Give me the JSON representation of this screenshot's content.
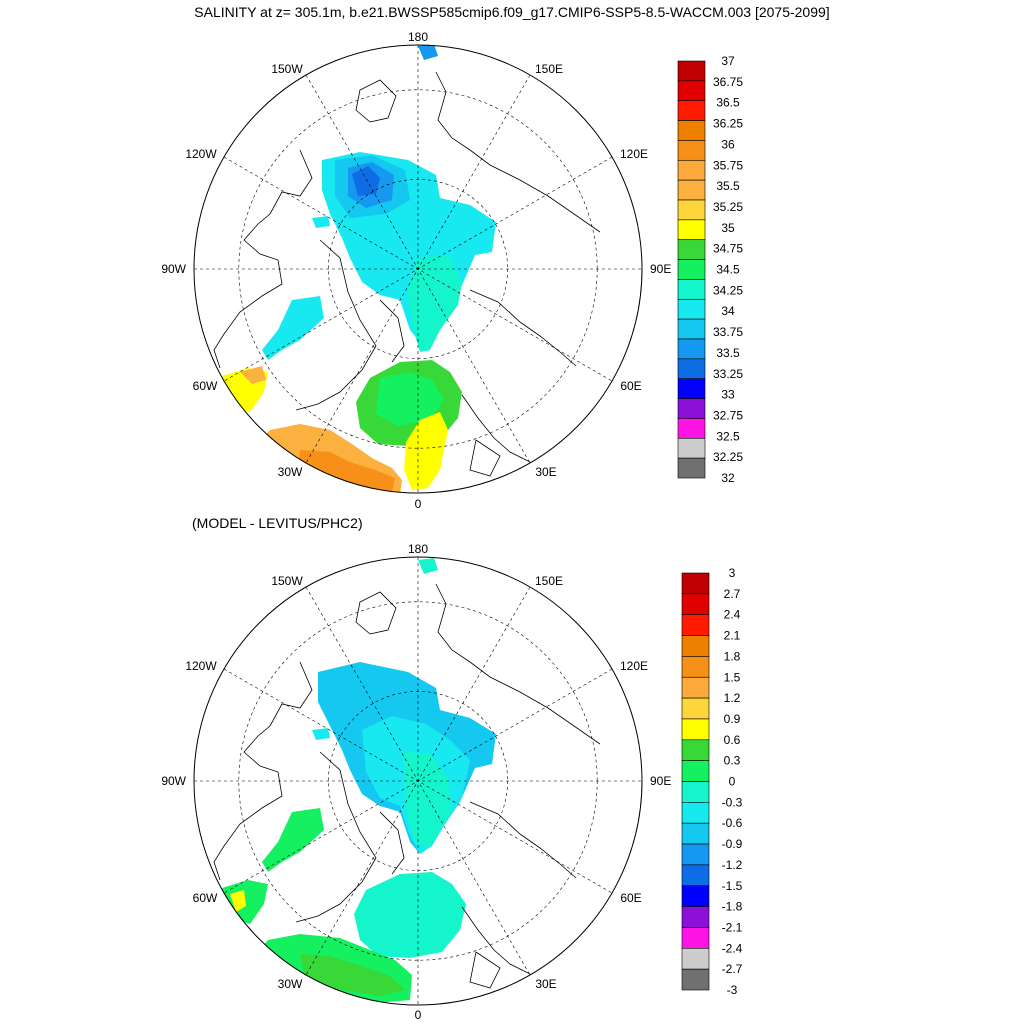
{
  "figure": {
    "title": "SALINITY at z= 305.1m, b.e21.BWSSP585cmip6.f09_g17.CMIP6-SSP5-8.5-WACCM.003 [2075-2099]",
    "subtitle": "(MODEL - LEVITUS/PHC2)"
  },
  "panels": [
    {
      "name": "salinity",
      "lon_labels": {
        "top": "180",
        "bottom": "0",
        "left": "90W",
        "right": "90E",
        "ul1": "150W",
        "ul2": "120W",
        "ur1": "150E",
        "ur2": "120E",
        "ll1": "60W",
        "ll2": "30W",
        "lr1": "60E",
        "lr2": "30E"
      },
      "colorbar": {
        "labels": [
          "37",
          "36.75",
          "36.5",
          "36.25",
          "36",
          "35.75",
          "35.5",
          "35.25",
          "35",
          "34.75",
          "34.5",
          "34.25",
          "34",
          "33.75",
          "33.5",
          "33.25",
          "33",
          "32.75",
          "32.5",
          "32.25",
          "32"
        ],
        "colors": [
          "#c00000",
          "#e00000",
          "#ff1a00",
          "#ee8000",
          "#f79018",
          "#fcaa3c",
          "#fbb040",
          "#ffd53c",
          "#ffff00",
          "#38d838",
          "#14f060",
          "#14f5cc",
          "#18e8f0",
          "#14c8f0",
          "#1498f0",
          "#0e6ce4",
          "#0000ff",
          "#8c10d8",
          "#ff14e6",
          "#cdcdcd",
          "#707070"
        ]
      }
    },
    {
      "name": "difference",
      "lon_labels": {
        "top": "180",
        "bottom": "0",
        "left": "90W",
        "right": "90E",
        "ul1": "150W",
        "ul2": "120W",
        "ur1": "150E",
        "ur2": "120E",
        "ll1": "60W",
        "ll2": "30W",
        "lr1": "60E",
        "lr2": "30E"
      },
      "colorbar": {
        "labels": [
          "3",
          "2.7",
          "2.4",
          "2.1",
          "1.8",
          "1.5",
          "1.2",
          "0.9",
          "0.6",
          "0.3",
          "0",
          "-0.3",
          "-0.6",
          "-0.9",
          "-1.2",
          "-1.5",
          "-1.8",
          "-2.1",
          "-2.4",
          "-2.7",
          "-3"
        ],
        "colors": [
          "#c00000",
          "#e00000",
          "#ff1a00",
          "#ee8000",
          "#f79018",
          "#fcaa3c",
          "#ffd53c",
          "#ffff00",
          "#38d838",
          "#14f060",
          "#14f5cc",
          "#18e8f0",
          "#14c8f0",
          "#1498f0",
          "#0e6ce4",
          "#0000ff",
          "#8c10d8",
          "#ff14e6",
          "#cdcdcd",
          "#707070"
        ]
      }
    }
  ]
}
